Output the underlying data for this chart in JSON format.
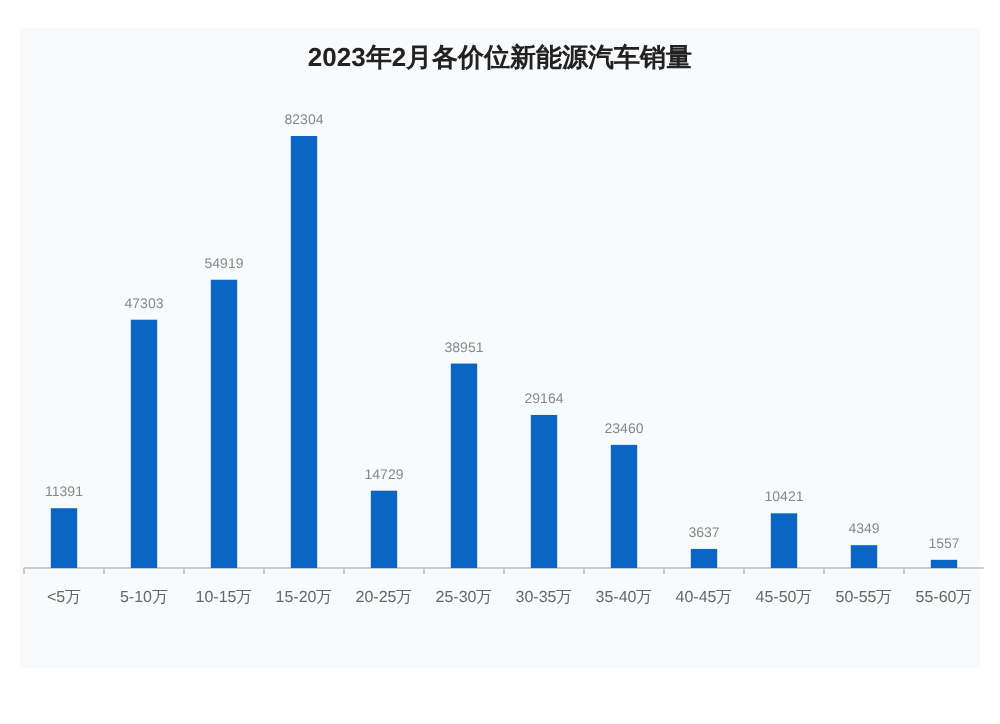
{
  "chart_data": {
    "type": "bar",
    "title": "2023年2月各价位新能源汽车销量",
    "categories": [
      "<5万",
      "5-10万",
      "10-15万",
      "15-20万",
      "20-25万",
      "25-30万",
      "30-35万",
      "35-40万",
      "40-45万",
      "45-50万",
      "50-55万",
      "55-60万"
    ],
    "series": [
      {
        "color": "#0a66c2",
        "values": [
          11391,
          47303,
          54919,
          82304,
          14729,
          38951,
          29164,
          23460,
          3637,
          10421,
          4349,
          1557
        ]
      }
    ],
    "data_labels": true
  }
}
